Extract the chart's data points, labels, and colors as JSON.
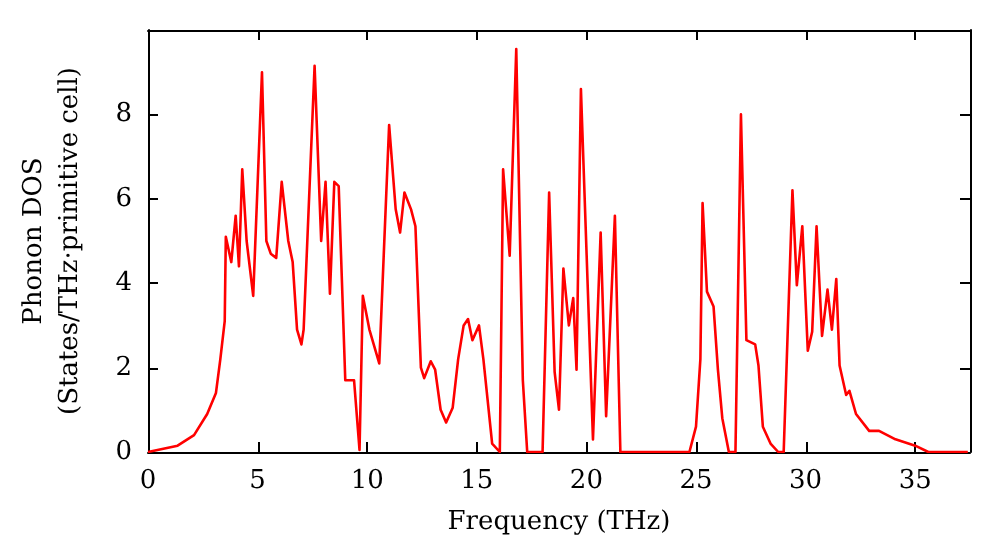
{
  "chart_data": {
    "type": "line",
    "xlabel": "Frequency (THz)",
    "ylabel": "Phonon DOS\n(States/THz·primitive cell)",
    "xlim": [
      0,
      37.5
    ],
    "ylim": [
      0,
      10
    ],
    "xticks": [
      0,
      5,
      10,
      15,
      20,
      25,
      30,
      35
    ],
    "yticks": [
      0,
      2,
      4,
      6,
      8
    ],
    "grid": false,
    "marker": "none",
    "line_style": "solid",
    "series": [
      {
        "color": "#ff0000",
        "x": [
          0,
          1.35,
          2.1,
          2.7,
          3.1,
          3.3,
          3.5,
          3.55,
          3.8,
          4.0,
          4.15,
          4.3,
          4.5,
          4.8,
          5.2,
          5.4,
          5.6,
          5.85,
          6.1,
          6.4,
          6.6,
          6.8,
          7.0,
          7.1,
          7.6,
          7.9,
          8.1,
          8.3,
          8.5,
          8.7,
          9.0,
          9.4,
          9.65,
          9.8,
          10.1,
          10.55,
          11.0,
          11.3,
          11.5,
          11.7,
          12.0,
          12.2,
          12.45,
          12.6,
          12.9,
          13.1,
          13.35,
          13.6,
          13.9,
          14.15,
          14.4,
          14.6,
          14.8,
          15.1,
          15.3,
          15.7,
          16.05,
          16.2,
          16.5,
          16.8,
          17.1,
          17.3,
          18.0,
          18.3,
          18.55,
          18.75,
          18.95,
          19.2,
          19.4,
          19.55,
          19.75,
          20.3,
          20.65,
          20.9,
          21.3,
          21.55,
          24.7,
          25.0,
          25.2,
          25.3,
          25.5,
          25.8,
          26.0,
          26.2,
          26.5,
          26.8,
          27.05,
          27.3,
          27.7,
          27.85,
          28.05,
          28.4,
          28.75,
          29.0,
          29.4,
          29.6,
          29.85,
          30.1,
          30.3,
          30.5,
          30.75,
          31.0,
          31.2,
          31.4,
          31.55,
          31.85,
          32.0,
          32.3,
          32.9,
          33.35,
          34.1,
          35.0,
          35.6,
          37.4
        ],
        "values": [
          0,
          0.15,
          0.4,
          0.9,
          1.4,
          2.2,
          3.1,
          5.1,
          4.5,
          5.6,
          4.4,
          6.7,
          5.0,
          3.7,
          9.0,
          5.0,
          4.7,
          4.6,
          6.4,
          5.0,
          4.5,
          2.9,
          2.55,
          2.9,
          9.15,
          5.0,
          6.4,
          3.75,
          6.4,
          6.3,
          1.7,
          1.7,
          0.05,
          3.7,
          2.9,
          2.1,
          7.75,
          5.75,
          5.2,
          6.15,
          5.75,
          5.35,
          2.0,
          1.75,
          2.15,
          1.95,
          1.0,
          0.7,
          1.05,
          2.2,
          3.0,
          3.15,
          2.65,
          3.0,
          2.2,
          0.2,
          0,
          6.7,
          4.65,
          9.55,
          1.7,
          0,
          0,
          6.15,
          1.9,
          1.0,
          4.35,
          3.0,
          3.65,
          1.95,
          8.6,
          0.3,
          5.2,
          0.85,
          5.6,
          0,
          0,
          0.6,
          2.2,
          5.9,
          3.8,
          3.45,
          1.95,
          0.8,
          0,
          0,
          8.0,
          2.65,
          2.55,
          2.05,
          0.6,
          0.2,
          0,
          0,
          6.2,
          3.95,
          5.35,
          2.4,
          2.85,
          5.35,
          2.75,
          3.85,
          2.9,
          4.1,
          2.05,
          1.35,
          1.45,
          0.9,
          0.5,
          0.5,
          0.3,
          0.15,
          0,
          0
        ]
      }
    ]
  }
}
